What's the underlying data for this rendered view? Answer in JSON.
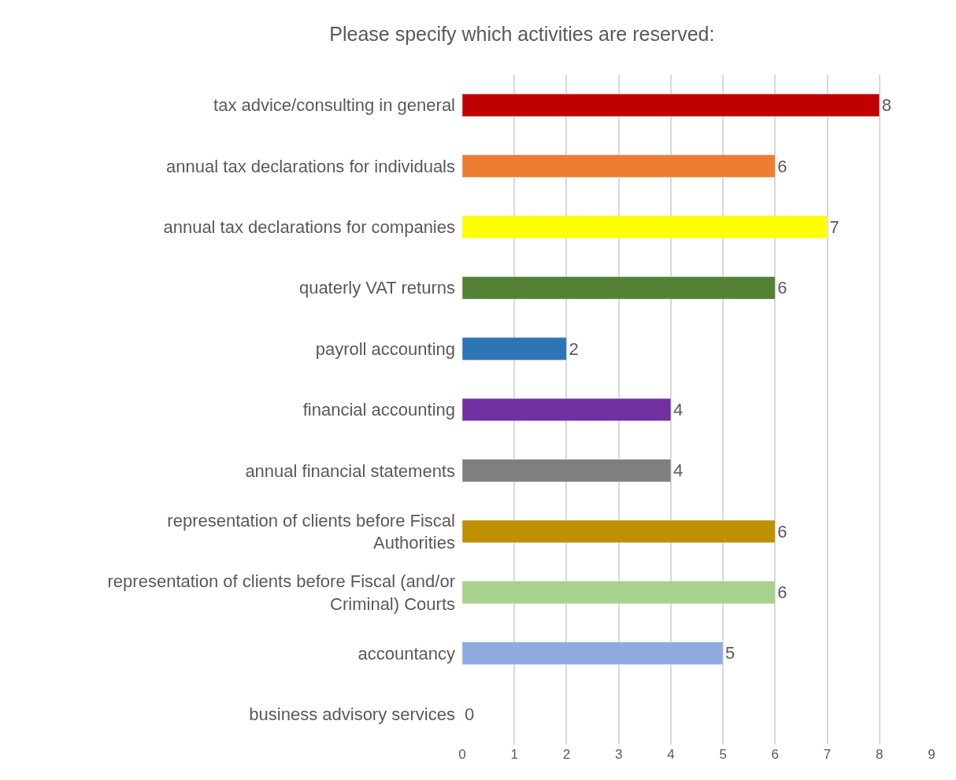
{
  "chart_data": {
    "type": "bar",
    "orientation": "horizontal",
    "title": "Please specify which activities are reserved:",
    "categories": [
      "tax advice/consulting in general",
      "annual tax declarations for individuals",
      "annual tax declarations for companies",
      "quaterly VAT returns",
      "payroll accounting",
      "financial accounting",
      "annual financial statements",
      "representation of clients before Fiscal Authorities",
      "representation of clients before Fiscal (and/or Criminal) Courts",
      "accountancy",
      "business advisory services"
    ],
    "values": [
      8,
      6,
      7,
      6,
      2,
      4,
      4,
      6,
      6,
      5,
      0
    ],
    "colors": [
      "#c00000",
      "#ed7d31",
      "#ffff00",
      "#548235",
      "#2e75b6",
      "#7030a0",
      "#7f7f7f",
      "#bf9000",
      "#a9d18e",
      "#8faadc",
      null
    ],
    "xlim": [
      0,
      9
    ],
    "xticks": [
      0,
      1,
      2,
      3,
      4,
      5,
      6,
      7,
      8,
      9
    ],
    "grid": "x",
    "data_labels": true,
    "legend": false
  }
}
